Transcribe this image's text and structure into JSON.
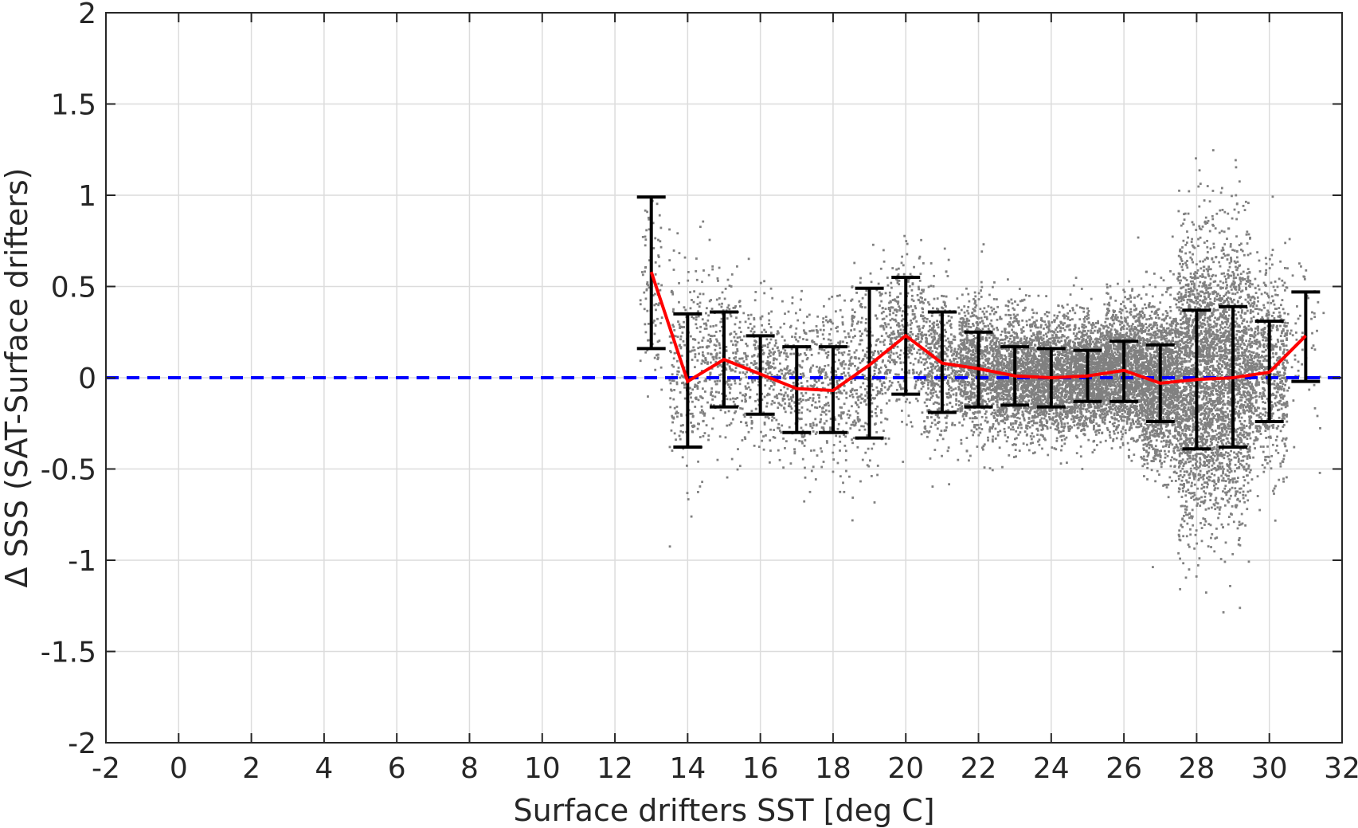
{
  "chart_data": {
    "type": "scatter",
    "title": "",
    "xlabel": "Surface drifters SST [deg C]",
    "ylabel": "Δ SSS (SAT-Surface drifters)",
    "xlim": [
      -2,
      32
    ],
    "ylim": [
      -2,
      2
    ],
    "xticks": [
      -2,
      0,
      2,
      4,
      6,
      8,
      10,
      12,
      14,
      16,
      18,
      20,
      22,
      24,
      26,
      28,
      30,
      32
    ],
    "yticks": [
      -2,
      -1.5,
      -1,
      -0.5,
      0,
      0.5,
      1,
      1.5,
      2
    ],
    "xtick_labels": [
      "-2",
      "0",
      "2",
      "4",
      "6",
      "8",
      "10",
      "12",
      "14",
      "16",
      "18",
      "20",
      "22",
      "24",
      "26",
      "28",
      "30",
      "32"
    ],
    "ytick_labels": [
      "-2",
      "-1.5",
      "-1",
      "-0.5",
      "0",
      "0.5",
      "1",
      "1.5",
      "2"
    ],
    "grid": true,
    "reference_line": {
      "y": 0,
      "style": "dashed",
      "color": "#0000ff"
    },
    "mean_series": {
      "color": "#ff0000",
      "x": [
        13,
        14,
        15,
        16,
        17,
        18,
        19,
        20,
        21,
        22,
        23,
        24,
        25,
        26,
        27,
        28,
        29,
        30,
        31
      ],
      "y": [
        0.58,
        -0.02,
        0.1,
        0.02,
        -0.06,
        -0.07,
        0.07,
        0.23,
        0.08,
        0.05,
        0.01,
        0.0,
        0.01,
        0.04,
        -0.03,
        -0.01,
        0.0,
        0.03,
        0.23
      ]
    },
    "error_bars": {
      "color": "#000000",
      "x": [
        13,
        14,
        15,
        16,
        17,
        18,
        19,
        20,
        21,
        22,
        23,
        24,
        25,
        26,
        27,
        28,
        29,
        30,
        31
      ],
      "lower": [
        0.16,
        -0.38,
        -0.16,
        -0.2,
        -0.3,
        -0.3,
        -0.33,
        -0.09,
        -0.19,
        -0.16,
        -0.15,
        -0.16,
        -0.13,
        -0.13,
        -0.24,
        -0.39,
        -0.38,
        -0.24,
        -0.02
      ],
      "upper": [
        0.99,
        0.35,
        0.36,
        0.23,
        0.17,
        0.17,
        0.49,
        0.55,
        0.36,
        0.25,
        0.17,
        0.16,
        0.15,
        0.2,
        0.18,
        0.37,
        0.39,
        0.31,
        0.47
      ]
    },
    "scatter_series": {
      "color": "#808080",
      "description_bins": [
        {
          "x_range": [
            12.7,
            13.3
          ],
          "y_mean": 0.5,
          "y_sd": 0.25,
          "n": 90
        },
        {
          "x_range": [
            13.5,
            14.5
          ],
          "y_mean": 0.05,
          "y_sd": 0.28,
          "n": 260
        },
        {
          "x_range": [
            14.5,
            15.5
          ],
          "y_mean": 0.08,
          "y_sd": 0.22,
          "n": 260
        },
        {
          "x_range": [
            15.5,
            16.5
          ],
          "y_mean": 0.02,
          "y_sd": 0.2,
          "n": 260
        },
        {
          "x_range": [
            16.5,
            17.5
          ],
          "y_mean": -0.05,
          "y_sd": 0.22,
          "n": 260
        },
        {
          "x_range": [
            17.5,
            18.5
          ],
          "y_mean": -0.05,
          "y_sd": 0.22,
          "n": 280
        },
        {
          "x_range": [
            18.5,
            19.5
          ],
          "y_mean": 0.05,
          "y_sd": 0.25,
          "n": 320
        },
        {
          "x_range": [
            19.5,
            20.5
          ],
          "y_mean": 0.2,
          "y_sd": 0.22,
          "n": 360
        },
        {
          "x_range": [
            20.5,
            21.5
          ],
          "y_mean": 0.08,
          "y_sd": 0.2,
          "n": 500
        },
        {
          "x_range": [
            21.5,
            22.5
          ],
          "y_mean": 0.05,
          "y_sd": 0.18,
          "n": 900
        },
        {
          "x_range": [
            22.5,
            23.5
          ],
          "y_mean": 0.01,
          "y_sd": 0.16,
          "n": 1100
        },
        {
          "x_range": [
            23.5,
            24.5
          ],
          "y_mean": 0.0,
          "y_sd": 0.16,
          "n": 1200
        },
        {
          "x_range": [
            24.5,
            25.5
          ],
          "y_mean": 0.01,
          "y_sd": 0.15,
          "n": 1300
        },
        {
          "x_range": [
            25.5,
            26.5
          ],
          "y_mean": 0.04,
          "y_sd": 0.17,
          "n": 1400
        },
        {
          "x_range": [
            26.5,
            27.5
          ],
          "y_mean": -0.03,
          "y_sd": 0.21,
          "n": 1500
        },
        {
          "x_range": [
            27.5,
            28.5
          ],
          "y_mean": -0.01,
          "y_sd": 0.38,
          "n": 1700
        },
        {
          "x_range": [
            28.5,
            29.5
          ],
          "y_mean": 0.0,
          "y_sd": 0.38,
          "n": 1400
        },
        {
          "x_range": [
            29.5,
            30.5
          ],
          "y_mean": 0.03,
          "y_sd": 0.27,
          "n": 700
        },
        {
          "x_range": [
            30.5,
            31.5
          ],
          "y_mean": 0.22,
          "y_sd": 0.24,
          "n": 60
        }
      ]
    }
  }
}
